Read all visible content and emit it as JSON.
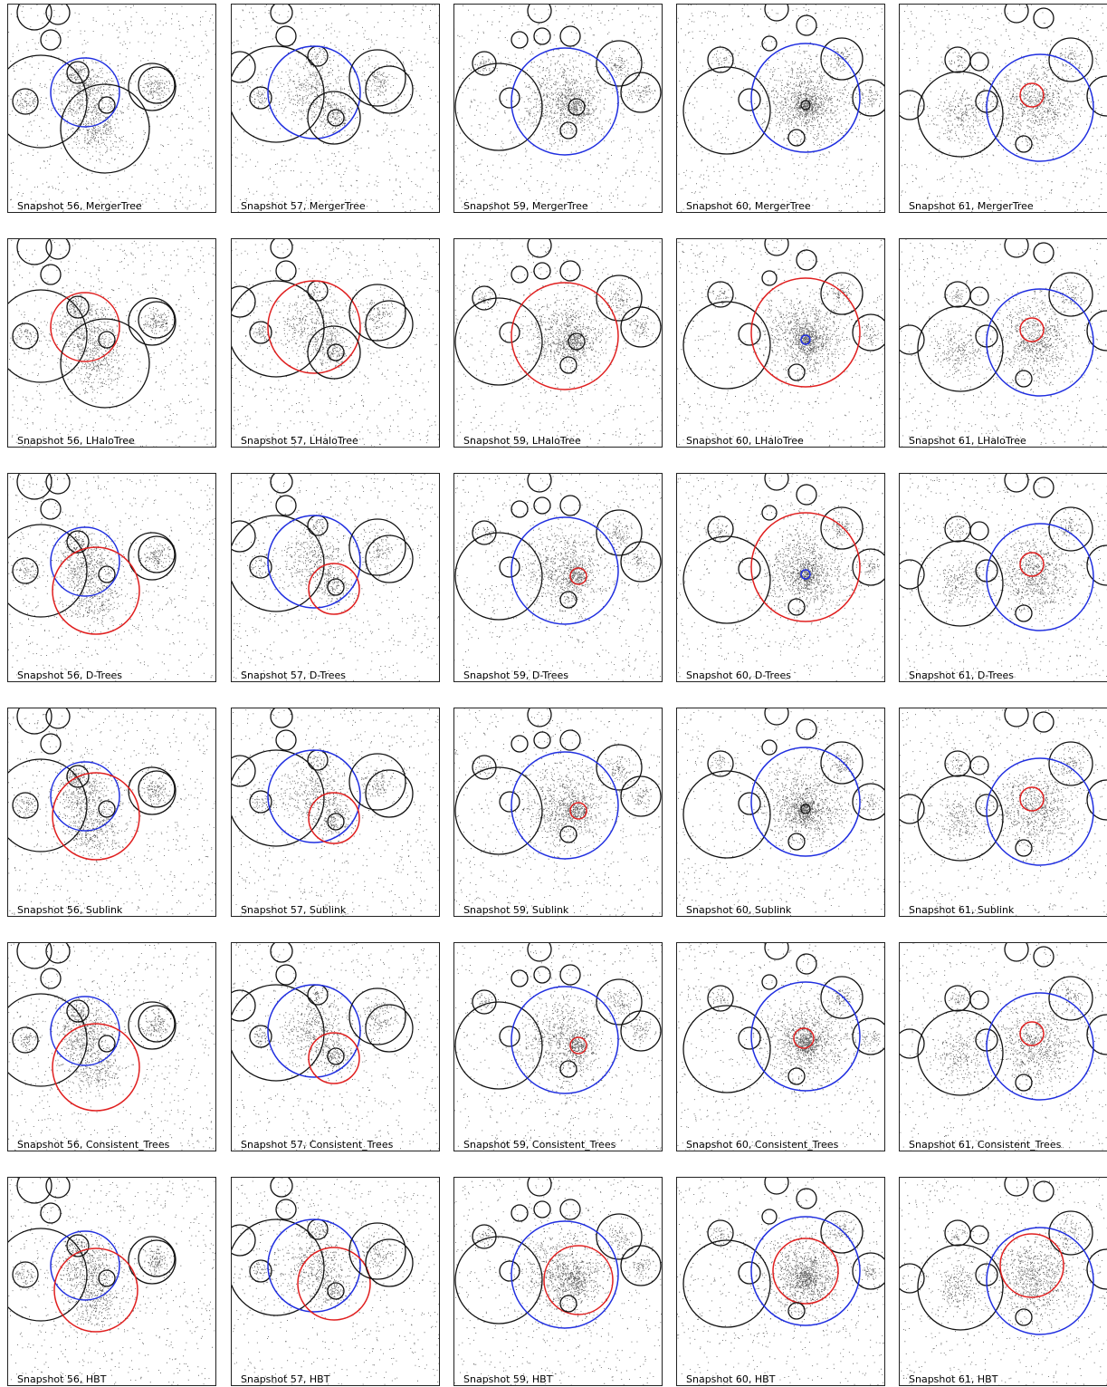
{
  "colors": {
    "host": "#1f2ee0",
    "descendant": "#e01f1f",
    "other": "#111111",
    "particles": "#222222",
    "background": "#ffffff"
  },
  "figure": {
    "columns": [
      {
        "snapshot": "56"
      },
      {
        "snapshot": "57"
      },
      {
        "snapshot": "59"
      },
      {
        "snapshot": "60"
      },
      {
        "snapshot": "61"
      }
    ],
    "rows": [
      {
        "code": "MergerTree"
      },
      {
        "code": "LHaloTree"
      },
      {
        "code": "D-Trees"
      },
      {
        "code": "Sublink"
      },
      {
        "code": "Consistent_Trees"
      },
      {
        "code": "HBT"
      }
    ],
    "panels": [
      {
        "label": "Snapshot 56, MergerTree"
      },
      {
        "label": "Snapshot 57, MergerTree"
      },
      {
        "label": "Snapshot 59, MergerTree"
      },
      {
        "label": "Snapshot 60, MergerTree"
      },
      {
        "label": "Snapshot 61, MergerTree"
      },
      {
        "label": "Snapshot 56, LHaloTree"
      },
      {
        "label": "Snapshot 57, LHaloTree"
      },
      {
        "label": "Snapshot 59, LHaloTree"
      },
      {
        "label": "Snapshot 60, LHaloTree"
      },
      {
        "label": "Snapshot 61, LHaloTree"
      },
      {
        "label": "Snapshot 56, D-Trees"
      },
      {
        "label": "Snapshot 57, D-Trees"
      },
      {
        "label": "Snapshot 59, D-Trees"
      },
      {
        "label": "Snapshot 60, D-Trees"
      },
      {
        "label": "Snapshot 61, D-Trees"
      },
      {
        "label": "Snapshot 56, Sublink"
      },
      {
        "label": "Snapshot 57, Sublink"
      },
      {
        "label": "Snapshot 59, Sublink"
      },
      {
        "label": "Snapshot 60, Sublink"
      },
      {
        "label": "Snapshot 61, Sublink"
      },
      {
        "label": "Snapshot 56, Consistent_Trees"
      },
      {
        "label": "Snapshot 57, Consistent_Trees"
      },
      {
        "label": "Snapshot 59, Consistent_Trees"
      },
      {
        "label": "Snapshot 60, Consistent_Trees"
      },
      {
        "label": "Snapshot 61, Consistent_Trees"
      },
      {
        "label": "Snapshot 56, HBT"
      },
      {
        "label": "Snapshot 57, HBT"
      },
      {
        "label": "Snapshot 59, HBT"
      },
      {
        "label": "Snapshot 60, HBT"
      },
      {
        "label": "Snapshot 61, HBT"
      }
    ]
  }
}
